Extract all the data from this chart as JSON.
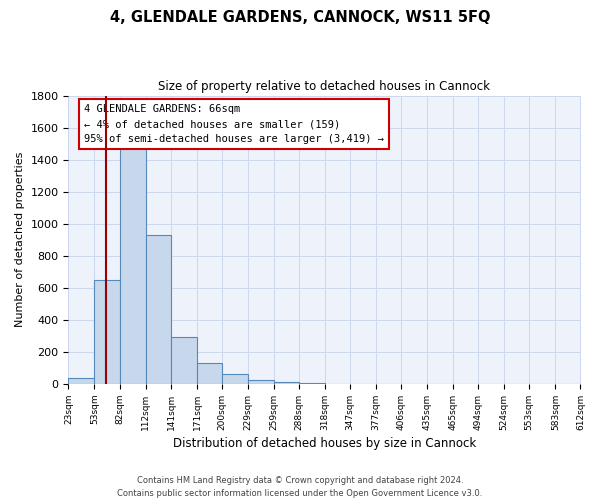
{
  "title": "4, GLENDALE GARDENS, CANNOCK, WS11 5FQ",
  "subtitle": "Size of property relative to detached houses in Cannock",
  "xlabel": "Distribution of detached houses by size in Cannock",
  "ylabel": "Number of detached properties",
  "bin_edges": [
    23,
    53,
    82,
    112,
    141,
    171,
    200,
    229,
    259,
    288,
    318,
    347,
    377,
    406,
    435,
    465,
    494,
    524,
    553,
    583,
    612
  ],
  "bar_heights": [
    40,
    650,
    1470,
    930,
    290,
    130,
    65,
    25,
    10,
    5,
    0,
    0,
    0,
    0,
    0,
    0,
    0,
    0,
    0,
    0
  ],
  "bar_color": "#c8d8ec",
  "bar_edge_color": "#5588bb",
  "property_size": 66,
  "vline_color": "#990000",
  "ylim": [
    0,
    1800
  ],
  "yticks": [
    0,
    200,
    400,
    600,
    800,
    1000,
    1200,
    1400,
    1600,
    1800
  ],
  "annotation_text": "4 GLENDALE GARDENS: 66sqm\n← 4% of detached houses are smaller (159)\n95% of semi-detached houses are larger (3,419) →",
  "annotation_box_color": "#ffffff",
  "annotation_border_color": "#cc0000",
  "footer_line1": "Contains HM Land Registry data © Crown copyright and database right 2024.",
  "footer_line2": "Contains public sector information licensed under the Open Government Licence v3.0.",
  "grid_color": "#ccd8ee",
  "background_color": "#eef2fa"
}
